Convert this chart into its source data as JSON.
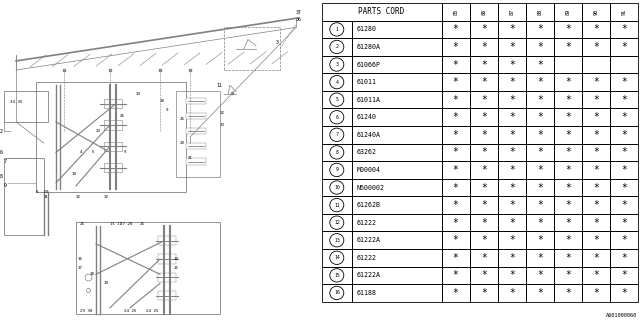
{
  "diagram_code": "A601000060",
  "table_header": "PARTS CORD",
  "year_columns": [
    "85",
    "86",
    "87",
    "88",
    "89",
    "90",
    "91"
  ],
  "parts": [
    {
      "num": 1,
      "code": "61280",
      "marks": [
        1,
        1,
        1,
        1,
        1,
        1,
        1
      ]
    },
    {
      "num": 2,
      "code": "61280A",
      "marks": [
        1,
        1,
        1,
        1,
        1,
        1,
        1
      ]
    },
    {
      "num": 3,
      "code": "61066P",
      "marks": [
        1,
        1,
        1,
        1,
        0,
        0,
        0
      ]
    },
    {
      "num": 4,
      "code": "61011",
      "marks": [
        1,
        1,
        1,
        1,
        1,
        1,
        1
      ]
    },
    {
      "num": 5,
      "code": "61011A",
      "marks": [
        1,
        1,
        1,
        1,
        1,
        1,
        1
      ]
    },
    {
      "num": 6,
      "code": "61240",
      "marks": [
        1,
        1,
        1,
        1,
        1,
        1,
        1
      ]
    },
    {
      "num": 7,
      "code": "61240A",
      "marks": [
        1,
        1,
        1,
        1,
        1,
        1,
        1
      ]
    },
    {
      "num": 8,
      "code": "63262",
      "marks": [
        1,
        1,
        1,
        1,
        1,
        1,
        1
      ]
    },
    {
      "num": 9,
      "code": "M00004",
      "marks": [
        1,
        1,
        1,
        1,
        1,
        1,
        1
      ]
    },
    {
      "num": 10,
      "code": "N600002",
      "marks": [
        1,
        1,
        1,
        1,
        1,
        1,
        1
      ]
    },
    {
      "num": 11,
      "code": "61262B",
      "marks": [
        1,
        1,
        1,
        1,
        1,
        1,
        1
      ]
    },
    {
      "num": 12,
      "code": "61222",
      "marks": [
        1,
        1,
        1,
        1,
        1,
        1,
        1
      ]
    },
    {
      "num": 13,
      "code": "61222A",
      "marks": [
        1,
        1,
        1,
        1,
        1,
        1,
        1
      ]
    },
    {
      "num": 14,
      "code": "61222",
      "marks": [
        1,
        1,
        1,
        1,
        1,
        1,
        1
      ]
    },
    {
      "num": 15,
      "code": "61222A",
      "marks": [
        1,
        1,
        1,
        1,
        1,
        1,
        1
      ]
    },
    {
      "num": 16,
      "code": "61188",
      "marks": [
        1,
        1,
        1,
        1,
        1,
        1,
        1
      ]
    }
  ],
  "bg_color": "#ffffff",
  "line_color": "#808080",
  "text_color": "#000000",
  "table_line_color": "#000000"
}
